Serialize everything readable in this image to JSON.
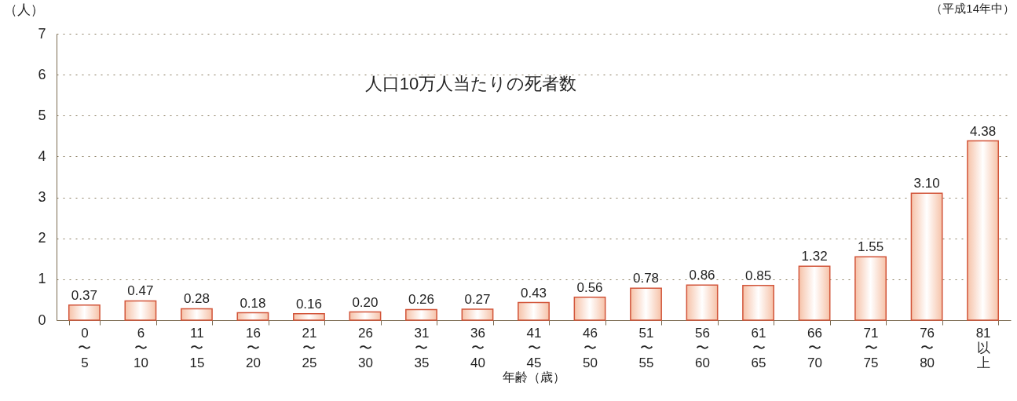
{
  "chart_data": {
    "type": "bar",
    "title": "人口10万人当たりの死者数",
    "ylabel": "（人）",
    "xlabel": "年齢（歳）",
    "annotations": [
      "（平成14年中）"
    ],
    "categories": [
      "0\n〜\n5",
      "6\n〜\n10",
      "11\n〜\n15",
      "16\n〜\n20",
      "21\n〜\n25",
      "26\n〜\n30",
      "31\n〜\n35",
      "36\n〜\n40",
      "41\n〜\n45",
      "46\n〜\n50",
      "51\n〜\n55",
      "56\n〜\n60",
      "61\n〜\n65",
      "66\n〜\n70",
      "71\n〜\n75",
      "76\n〜\n80",
      "81\n以上"
    ],
    "values": [
      0.37,
      0.47,
      0.28,
      0.18,
      0.16,
      0.2,
      0.26,
      0.27,
      0.43,
      0.56,
      0.78,
      0.86,
      0.85,
      1.32,
      1.55,
      3.1,
      4.38
    ],
    "value_labels": [
      "0.37",
      "0.47",
      "0.28",
      "0.18",
      "0.16",
      "0.20",
      "0.26",
      "0.27",
      "0.43",
      "0.56",
      "0.78",
      "0.86",
      "0.85",
      "1.32",
      "1.55",
      "3.10",
      "4.38"
    ],
    "color": "#d2553a",
    "ylim": [
      0,
      7
    ],
    "yticks": [
      0,
      1,
      2,
      3,
      4,
      5,
      6,
      7
    ],
    "grid": "y"
  }
}
